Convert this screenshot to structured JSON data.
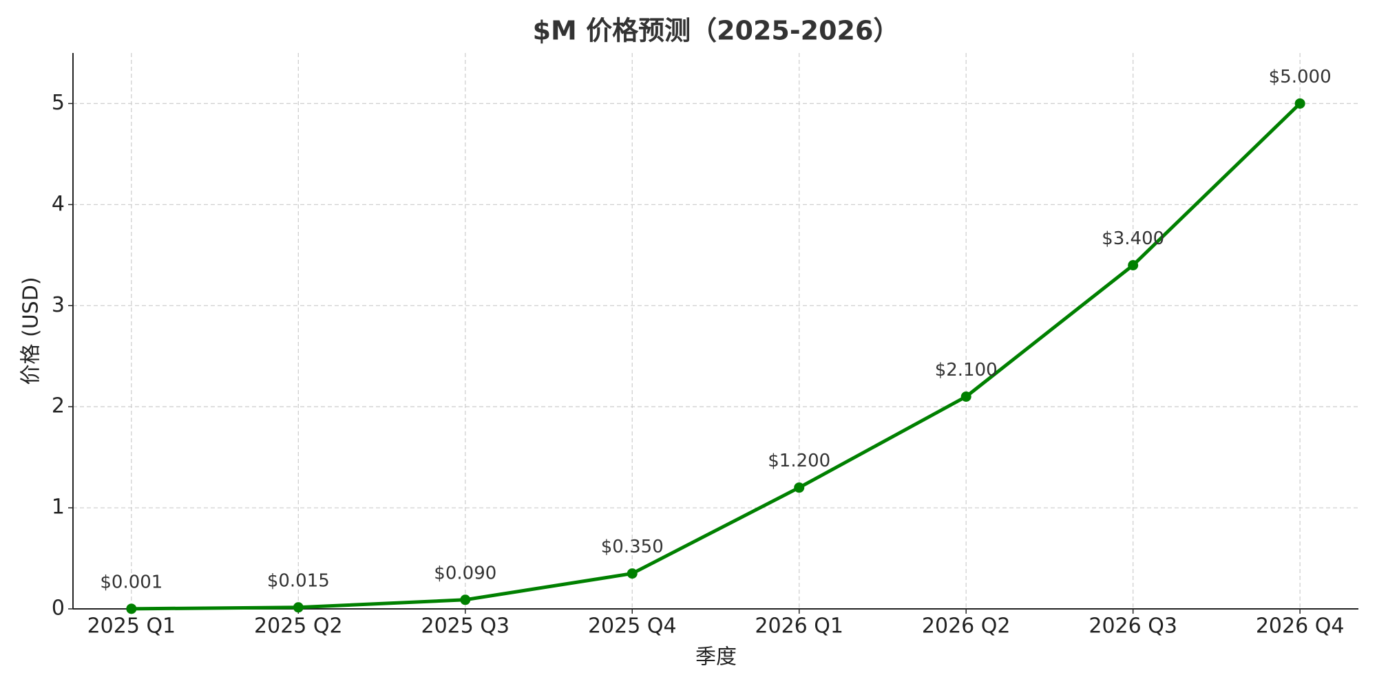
{
  "chart_data": {
    "type": "line",
    "title": "$M 价格预测（2025-2026）",
    "x_label": "季度",
    "y_label": "价格 (USD)",
    "categories": [
      "2025 Q1",
      "2025 Q2",
      "2025 Q3",
      "2025 Q4",
      "2026 Q1",
      "2026 Q2",
      "2026 Q3",
      "2026 Q4"
    ],
    "values": [
      0.001,
      0.015,
      0.09,
      0.35,
      1.2,
      2.1,
      3.4,
      5.0
    ],
    "value_labels": [
      "$0.001",
      "$0.015",
      "$0.090",
      "$0.350",
      "$1.200",
      "$2.100",
      "$3.400",
      "$5.000"
    ],
    "color": "#008000",
    "ylim": [
      0,
      5.5
    ],
    "yticks": [
      0,
      1,
      2,
      3,
      4,
      5
    ],
    "grid": true
  }
}
